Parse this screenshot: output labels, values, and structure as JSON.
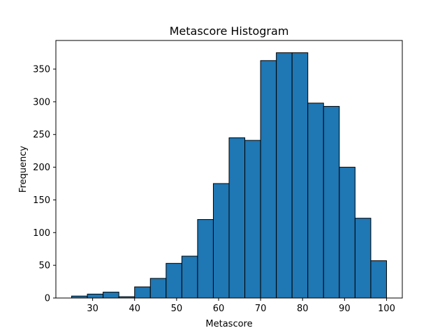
{
  "chart_data": {
    "type": "bar",
    "title": "Metascore Histogram",
    "xlabel": "Metascore",
    "ylabel": "Frequency",
    "bin_edges": [
      25,
      28.75,
      32.5,
      36.25,
      40,
      43.75,
      47.5,
      51.25,
      55,
      58.75,
      62.5,
      66.25,
      70,
      73.75,
      77.5,
      81.25,
      85,
      88.75,
      92.5,
      96.25,
      100
    ],
    "values": [
      3,
      6,
      9,
      2,
      17,
      30,
      53,
      64,
      120,
      175,
      245,
      241,
      363,
      375,
      375,
      298,
      293,
      200,
      122,
      57
    ],
    "xlim": [
      21.25,
      103.75
    ],
    "ylim": [
      0,
      393.75
    ],
    "xticks": [
      30,
      40,
      50,
      60,
      70,
      80,
      90,
      100
    ],
    "yticks": [
      0,
      50,
      100,
      150,
      200,
      250,
      300,
      350
    ],
    "bar_color": "#1f77b4",
    "edge_color": "#000000",
    "grid": false
  }
}
